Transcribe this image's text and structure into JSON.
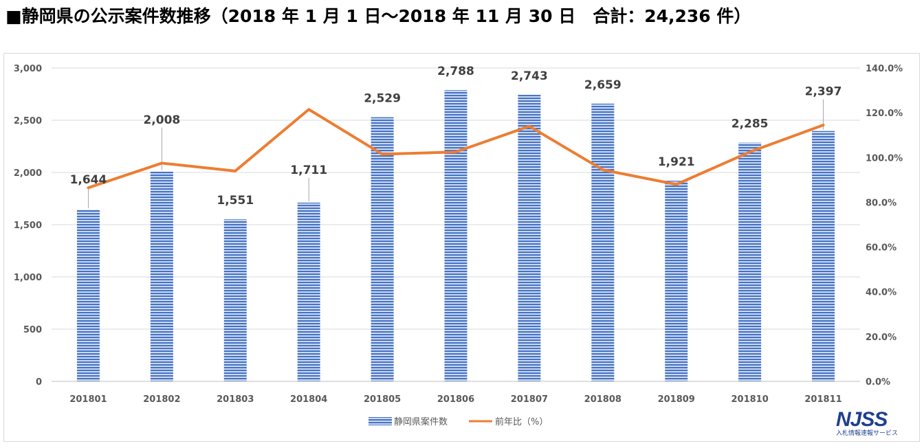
{
  "title": "■静岡県の公示案件数推移（2018 年 1 月 1 日～2018 年 11 月 30 日　合計：24,236 件）",
  "logo": {
    "text": "NJSS",
    "subtext": "入札情報速報サービス",
    "icon": "njss-logo"
  },
  "colors": {
    "bar": "#4472c4",
    "bar_light": "#dbe4f5",
    "line": "#ed7d31",
    "grid": "#d9d9d9",
    "axis_text": "#595959",
    "label_text": "#404040"
  },
  "chart_data": {
    "type": "bar",
    "categories": [
      "201801",
      "201802",
      "201803",
      "201804",
      "201805",
      "201806",
      "201807",
      "201808",
      "201809",
      "201810",
      "201811"
    ],
    "series": [
      {
        "name": "静岡県案件数",
        "type": "bar",
        "axis": "left",
        "values": [
          1644,
          2008,
          1551,
          1711,
          2529,
          2788,
          2743,
          2659,
          1921,
          2285,
          2397
        ],
        "labels": [
          "1,644",
          "2,008",
          "1,551",
          "1,711",
          "2,529",
          "2,788",
          "2,743",
          "2,659",
          "1,921",
          "2,285",
          "2,397"
        ]
      },
      {
        "name": "前年比（%）",
        "type": "line",
        "axis": "right",
        "values": [
          86.5,
          97.5,
          94.0,
          121.5,
          101.5,
          102.5,
          114.0,
          94.5,
          88.0,
          102.5,
          114.5
        ]
      }
    ],
    "y_left": {
      "min": 0,
      "max": 3000,
      "ticks": [
        "0",
        "500",
        "1,000",
        "1,500",
        "2,000",
        "2,500",
        "3,000"
      ]
    },
    "y_right": {
      "min": 0,
      "max": 140,
      "ticks": [
        "0.0%",
        "20.0%",
        "40.0%",
        "60.0%",
        "80.0%",
        "100.0%",
        "120.0%",
        "140.0%"
      ]
    },
    "grid": true,
    "legend_position": "bottom"
  }
}
